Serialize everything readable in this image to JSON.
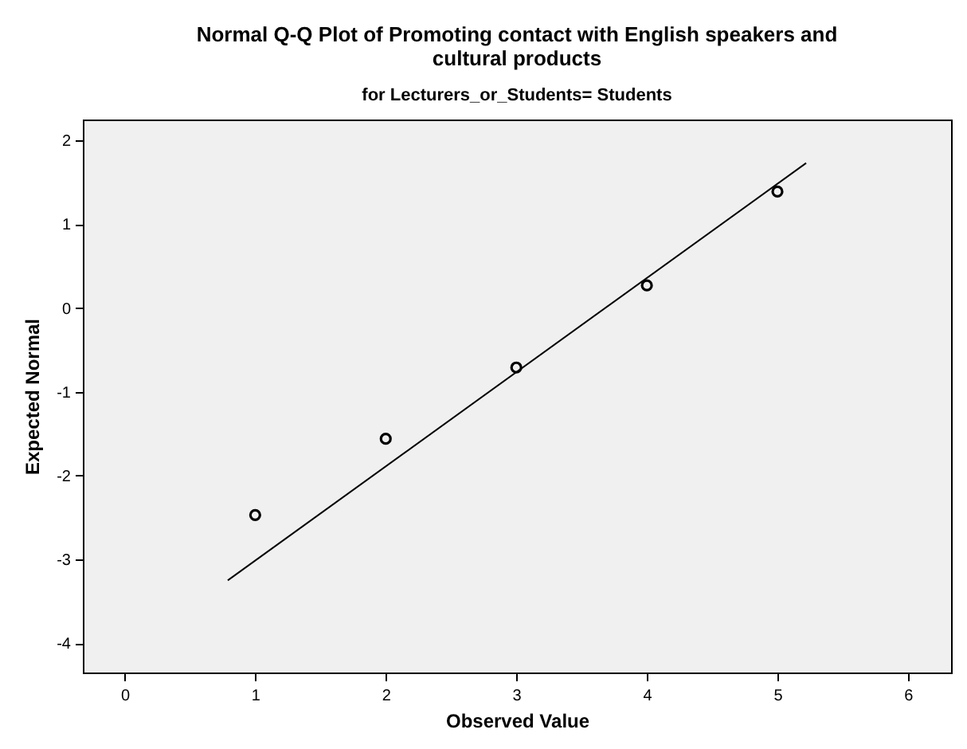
{
  "chart_data": {
    "type": "scatter",
    "title": "Normal Q-Q Plot of Promoting contact with English speakers and cultural products",
    "subtitle": "for Lecturers_or_Students= Students",
    "xlabel": "Observed Value",
    "ylabel": "Expected Normal",
    "x": [
      1,
      2,
      3,
      4,
      5
    ],
    "series": [
      {
        "color": "#000000",
        "marker": "circle",
        "values": [
          -2.47,
          -1.56,
          -0.71,
          0.27,
          1.39
        ]
      },
      {
        "type": "line",
        "color": "#000000",
        "x": [
          0.79,
          5.22
        ],
        "values": [
          -3.25,
          1.73
        ]
      }
    ],
    "xlim": [
      -0.32,
      6.33
    ],
    "xticks": [
      0,
      1,
      2,
      3,
      4,
      5,
      6
    ],
    "ylim": [
      -4.35,
      2.25
    ],
    "yticks": [
      -4,
      -3,
      -2,
      -1,
      0,
      1,
      2
    ],
    "grid": false
  }
}
